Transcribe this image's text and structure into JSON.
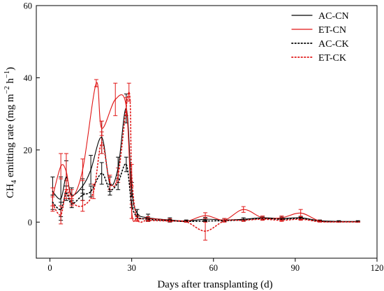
{
  "chart_data": {
    "type": "line",
    "title": "",
    "xlabel": "Days after transplanting (d)",
    "ylabel": {
      "pre": "CH",
      "sub": "4",
      "post1": " emitting rate (mg m",
      "sup1": "−2",
      "mid": " h",
      "sup2": "−1",
      "post2": ")"
    },
    "xlim": [
      -5,
      120
    ],
    "ylim": [
      -10,
      60
    ],
    "xticks": [
      "0",
      "30",
      "60",
      "90",
      "120"
    ],
    "yticks": [
      "0",
      "20",
      "40",
      "60"
    ],
    "legend_position": "top-right",
    "series": [
      {
        "name": "AC-CN",
        "color": "#000000",
        "dash": "solid",
        "points": [
          [
            1,
            8.5
          ],
          [
            4,
            6.5
          ],
          [
            6,
            12.5
          ],
          [
            8,
            7.5
          ],
          [
            12,
            10
          ],
          [
            15,
            14.5
          ],
          [
            19,
            23.5
          ],
          [
            22,
            10.5
          ],
          [
            25,
            15
          ],
          [
            28,
            31.5
          ],
          [
            30,
            9
          ],
          [
            32,
            2.5
          ],
          [
            36,
            1.2
          ],
          [
            44,
            0.6
          ],
          [
            50,
            0.3
          ],
          [
            57,
            0.8
          ],
          [
            64,
            0.6
          ],
          [
            71,
            0.8
          ],
          [
            78,
            1.2
          ],
          [
            85,
            1
          ],
          [
            92,
            1.2
          ],
          [
            99,
            0.4
          ],
          [
            106,
            0.2
          ],
          [
            113,
            0.2
          ]
        ],
        "errors": [
          4,
          6,
          4.5,
          2,
          2,
          4,
          4.5,
          2,
          3,
          4,
          2,
          1,
          1,
          0.6,
          0.3,
          0.5,
          0.4,
          0.4,
          0.4,
          0.4,
          0.4,
          0.2,
          0.2,
          0.2
        ]
      },
      {
        "name": "ET-CN",
        "color": "#e01414",
        "dash": "solid",
        "points": [
          [
            1,
            7
          ],
          [
            4,
            15.5
          ],
          [
            6,
            14
          ],
          [
            8,
            7
          ],
          [
            12,
            14.5
          ],
          [
            17,
            38.5
          ],
          [
            19,
            26
          ],
          [
            24,
            34
          ],
          [
            28,
            32
          ],
          [
            30,
            3
          ],
          [
            32,
            1
          ],
          [
            36,
            1
          ],
          [
            44,
            0.5
          ],
          [
            50,
            0.2
          ],
          [
            57,
            1.8
          ],
          [
            64,
            0.6
          ],
          [
            71,
            3.5
          ],
          [
            78,
            1.2
          ],
          [
            85,
            1.2
          ],
          [
            92,
            2.5
          ],
          [
            99,
            0.3
          ],
          [
            106,
            0.1
          ],
          [
            113,
            0.1
          ]
        ],
        "errors": [
          2.5,
          3.5,
          5,
          2,
          3,
          1,
          2,
          4.5,
          2.5,
          2,
          0.8,
          0.5,
          0.4,
          0.2,
          0.8,
          0.4,
          0.8,
          0.5,
          0.5,
          1,
          0.2,
          0.1,
          0.1
        ]
      },
      {
        "name": "AC-CK",
        "color": "#000000",
        "dash": "dotted",
        "points": [
          [
            1,
            5.5
          ],
          [
            4,
            3.5
          ],
          [
            6,
            8
          ],
          [
            8,
            5
          ],
          [
            12,
            7.5
          ],
          [
            15,
            8.5
          ],
          [
            19,
            13.5
          ],
          [
            22,
            9
          ],
          [
            25,
            11
          ],
          [
            28,
            16
          ],
          [
            30,
            5
          ],
          [
            32,
            1.5
          ],
          [
            36,
            0.8
          ],
          [
            44,
            0.4
          ],
          [
            50,
            0.2
          ],
          [
            57,
            0.3
          ],
          [
            64,
            0.4
          ],
          [
            71,
            0.6
          ],
          [
            78,
            1
          ],
          [
            85,
            0.8
          ],
          [
            92,
            1
          ],
          [
            99,
            0.2
          ],
          [
            106,
            0.1
          ],
          [
            113,
            0.1
          ]
        ],
        "errors": [
          2,
          2,
          2,
          1,
          1.5,
          1.5,
          3,
          1.5,
          2,
          2,
          1,
          0.5,
          0.4,
          0.3,
          0.2,
          0.2,
          0.2,
          0.2,
          0.3,
          0.3,
          0.3,
          0.1,
          0.1,
          0.1
        ]
      },
      {
        "name": "ET-CK",
        "color": "#e01414",
        "dash": "dotted",
        "points": [
          [
            1,
            5
          ],
          [
            4,
            2
          ],
          [
            6,
            9
          ],
          [
            8,
            5.5
          ],
          [
            12,
            4.5
          ],
          [
            16,
            8.5
          ],
          [
            19,
            22
          ],
          [
            22,
            11
          ],
          [
            25,
            13
          ],
          [
            29,
            36
          ],
          [
            30,
            13
          ],
          [
            32,
            1
          ],
          [
            36,
            0.5
          ],
          [
            44,
            0.3
          ],
          [
            50,
            0.1
          ],
          [
            57,
            -2.5
          ],
          [
            64,
            0.3
          ],
          [
            71,
            0.5
          ],
          [
            78,
            0.8
          ],
          [
            85,
            0.5
          ],
          [
            92,
            0.8
          ],
          [
            99,
            0.1
          ],
          [
            106,
            0.05
          ],
          [
            113,
            0.05
          ]
        ],
        "errors": [
          2,
          2.5,
          2.5,
          1,
          1.5,
          2,
          3,
          2,
          2,
          2.5,
          3,
          0.5,
          0.3,
          0.2,
          0.1,
          2.5,
          0.3,
          0.3,
          0.3,
          0.3,
          0.3,
          0.1,
          0.05,
          0.05
        ]
      }
    ]
  }
}
